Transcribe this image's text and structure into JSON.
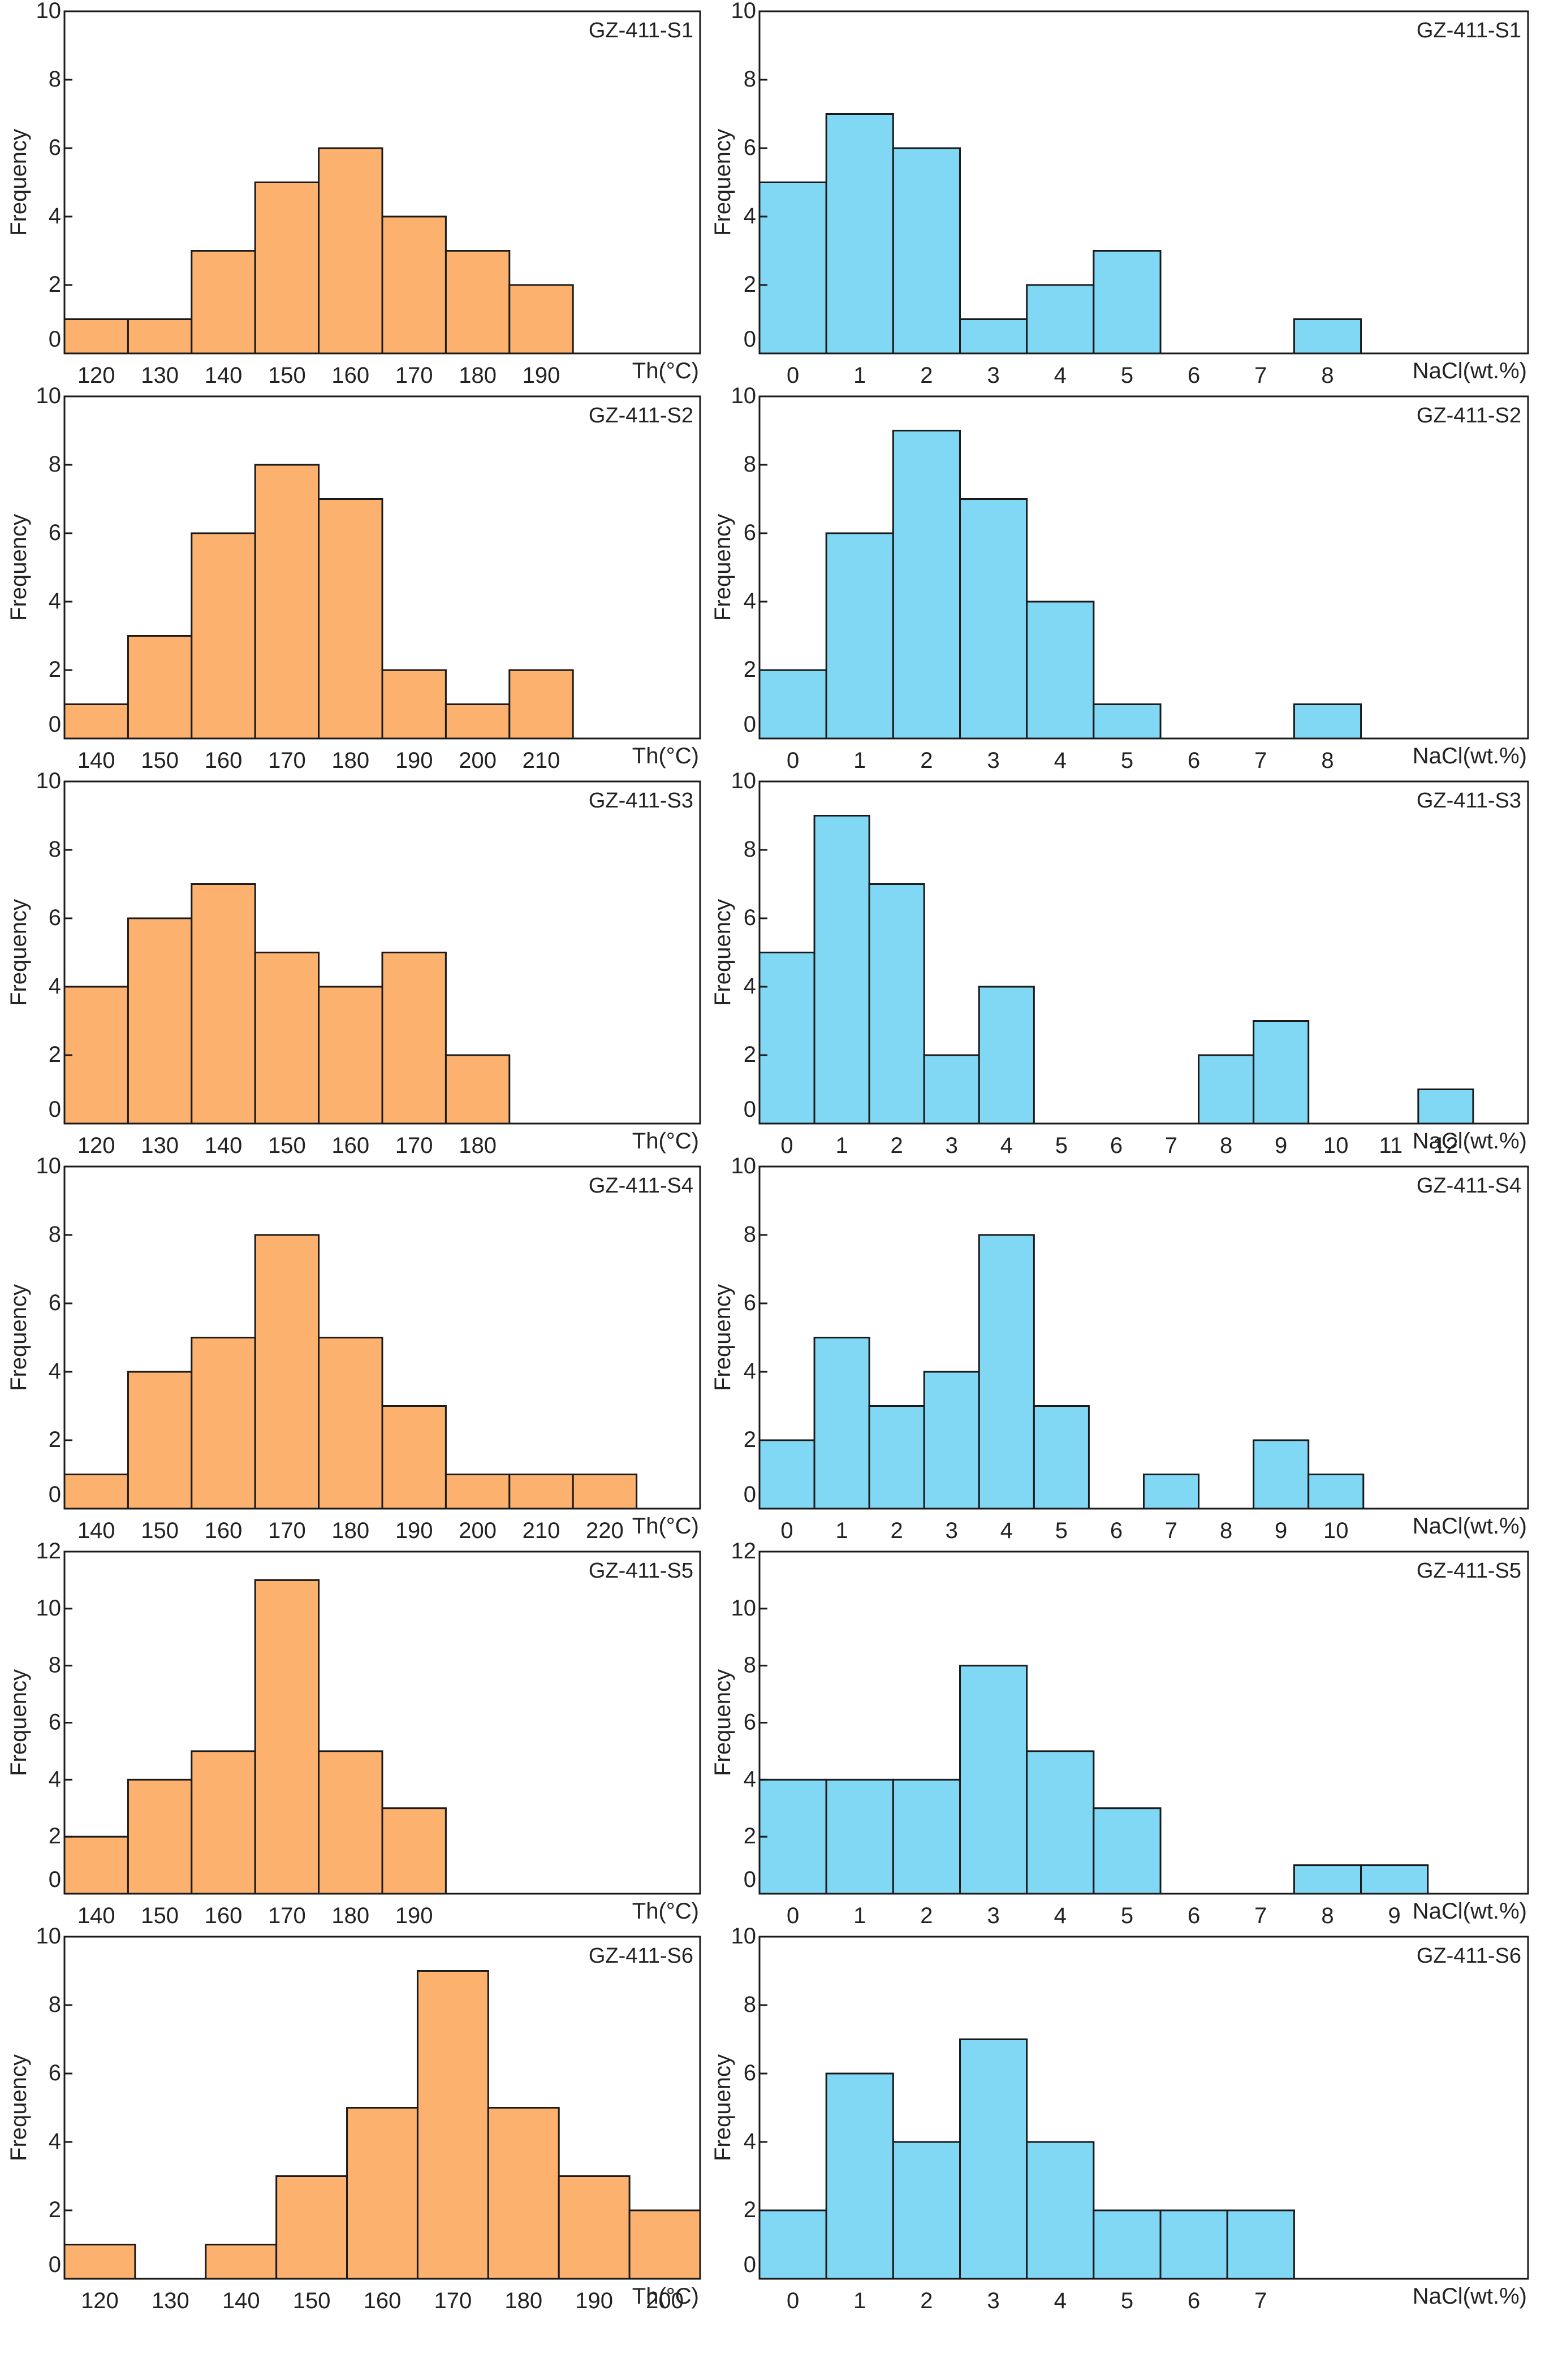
{
  "figure": {
    "colors": {
      "th": "#FDB16F",
      "nacl": "#80D8F5",
      "stroke": "#1a1a1a",
      "text": "#222222"
    },
    "ylabel": "Frequency"
  },
  "chart_data": [
    {
      "type": "bar",
      "sample": "GZ-411-S1",
      "title": "GZ-411-S1",
      "variable": "Th",
      "xlabel": "Th(°C)",
      "ylabel": "Frequency",
      "ylim": [
        0,
        10
      ],
      "yticks": [
        0,
        2,
        4,
        6,
        8,
        10
      ],
      "xlim": [
        115,
        215
      ],
      "xticks": [
        120,
        130,
        140,
        150,
        160,
        170,
        180,
        190
      ],
      "bin_width": 10,
      "bin_centers": [
        120,
        130,
        140,
        150,
        160,
        170,
        180,
        190
      ],
      "values": [
        1,
        1,
        3,
        5,
        6,
        4,
        3,
        2
      ]
    },
    {
      "type": "bar",
      "sample": "GZ-411-S1",
      "title": "GZ-411-S1",
      "variable": "NaCl",
      "xlabel": "NaCl(wt.%)",
      "ylabel": "Frequency",
      "ylim": [
        0,
        10
      ],
      "yticks": [
        0,
        2,
        4,
        6,
        8,
        10
      ],
      "xlim": [
        -0.5,
        11
      ],
      "xticks": [
        0,
        1,
        2,
        3,
        4,
        5,
        6,
        7,
        8
      ],
      "bin_width": 1,
      "bin_centers": [
        0,
        1,
        2,
        3,
        4,
        5,
        6,
        7,
        8
      ],
      "values": [
        5,
        7,
        6,
        1,
        2,
        3,
        0,
        0,
        1
      ]
    },
    {
      "type": "bar",
      "sample": "GZ-411-S2",
      "title": "GZ-411-S2",
      "variable": "Th",
      "xlabel": "Th(°C)",
      "ylabel": "Frequency",
      "ylim": [
        0,
        10
      ],
      "yticks": [
        0,
        2,
        4,
        6,
        8,
        10
      ],
      "xlim": [
        135,
        235
      ],
      "xticks": [
        140,
        150,
        160,
        170,
        180,
        190,
        200,
        210
      ],
      "bin_width": 10,
      "bin_centers": [
        140,
        150,
        160,
        170,
        180,
        190,
        200,
        210
      ],
      "values": [
        1,
        3,
        6,
        8,
        7,
        2,
        1,
        2
      ]
    },
    {
      "type": "bar",
      "sample": "GZ-411-S2",
      "title": "GZ-411-S2",
      "variable": "NaCl",
      "xlabel": "NaCl(wt.%)",
      "ylabel": "Frequency",
      "ylim": [
        0,
        10
      ],
      "yticks": [
        0,
        2,
        4,
        6,
        8,
        10
      ],
      "xlim": [
        -0.5,
        11
      ],
      "xticks": [
        0,
        1,
        2,
        3,
        4,
        5,
        6,
        7,
        8
      ],
      "bin_width": 1,
      "bin_centers": [
        0,
        1,
        2,
        3,
        4,
        5,
        6,
        7,
        8
      ],
      "values": [
        2,
        6,
        9,
        7,
        4,
        1,
        0,
        0,
        1
      ]
    },
    {
      "type": "bar",
      "sample": "GZ-411-S3",
      "title": "GZ-411-S3",
      "variable": "Th",
      "xlabel": "Th(°C)",
      "ylabel": "Frequency",
      "ylim": [
        0,
        10
      ],
      "yticks": [
        0,
        2,
        4,
        6,
        8,
        10
      ],
      "xlim": [
        115,
        215
      ],
      "xticks": [
        120,
        130,
        140,
        150,
        160,
        170,
        180
      ],
      "bin_width": 10,
      "bin_centers": [
        120,
        130,
        140,
        150,
        160,
        170,
        180
      ],
      "values": [
        4,
        6,
        7,
        5,
        4,
        5,
        2
      ]
    },
    {
      "type": "bar",
      "sample": "GZ-411-S3",
      "title": "GZ-411-S3",
      "variable": "NaCl",
      "xlabel": "NaCl(wt.%)",
      "ylabel": "Frequency",
      "ylim": [
        0,
        10
      ],
      "yticks": [
        0,
        2,
        4,
        6,
        8,
        10
      ],
      "xlim": [
        -0.5,
        13.5
      ],
      "xticks": [
        0,
        1,
        2,
        3,
        4,
        5,
        6,
        7,
        8,
        9,
        10,
        11,
        12
      ],
      "bin_width": 1,
      "bin_centers": [
        0,
        1,
        2,
        3,
        4,
        5,
        6,
        7,
        8,
        9,
        10,
        11,
        12
      ],
      "values": [
        5,
        9,
        7,
        2,
        4,
        0,
        0,
        0,
        2,
        3,
        0,
        0,
        1
      ]
    },
    {
      "type": "bar",
      "sample": "GZ-411-S4",
      "title": "GZ-411-S4",
      "variable": "Th",
      "xlabel": "Th(°C)",
      "ylabel": "Frequency",
      "ylim": [
        0,
        10
      ],
      "yticks": [
        0,
        2,
        4,
        6,
        8,
        10
      ],
      "xlim": [
        135,
        235
      ],
      "xticks": [
        140,
        150,
        160,
        170,
        180,
        190,
        200,
        210,
        220
      ],
      "bin_width": 10,
      "bin_centers": [
        140,
        150,
        160,
        170,
        180,
        190,
        200,
        210,
        220
      ],
      "values": [
        1,
        4,
        5,
        8,
        5,
        3,
        1,
        1,
        1
      ]
    },
    {
      "type": "bar",
      "sample": "GZ-411-S4",
      "title": "GZ-411-S4",
      "variable": "NaCl",
      "xlabel": "NaCl(wt.%)",
      "ylabel": "Frequency",
      "ylim": [
        0,
        10
      ],
      "yticks": [
        0,
        2,
        4,
        6,
        8,
        10
      ],
      "xlim": [
        -0.5,
        13.5
      ],
      "xticks": [
        0,
        1,
        2,
        3,
        4,
        5,
        6,
        7,
        8,
        9,
        10
      ],
      "bin_width": 1,
      "bin_centers": [
        0,
        1,
        2,
        3,
        4,
        5,
        6,
        7,
        8,
        9,
        10
      ],
      "values": [
        2,
        5,
        3,
        4,
        8,
        3,
        0,
        1,
        0,
        2,
        1
      ]
    },
    {
      "type": "bar",
      "sample": "GZ-411-S5",
      "title": "GZ-411-S5",
      "variable": "Th",
      "xlabel": "Th(°C)",
      "ylabel": "Frequency",
      "ylim": [
        0,
        12
      ],
      "yticks": [
        0,
        2,
        4,
        6,
        8,
        10,
        12
      ],
      "xlim": [
        135,
        235
      ],
      "xticks": [
        140,
        150,
        160,
        170,
        180,
        190
      ],
      "bin_width": 10,
      "bin_centers": [
        140,
        150,
        160,
        170,
        180,
        190
      ],
      "values": [
        2,
        4,
        5,
        11,
        5,
        3
      ]
    },
    {
      "type": "bar",
      "sample": "GZ-411-S5",
      "title": "GZ-411-S5",
      "variable": "NaCl",
      "xlabel": "NaCl(wt.%)",
      "ylabel": "Frequency",
      "ylim": [
        0,
        12
      ],
      "yticks": [
        0,
        2,
        4,
        6,
        8,
        10,
        12
      ],
      "xlim": [
        -0.5,
        11
      ],
      "xticks": [
        0,
        1,
        2,
        3,
        4,
        5,
        6,
        7,
        8,
        9
      ],
      "bin_width": 1,
      "bin_centers": [
        0,
        1,
        2,
        3,
        4,
        5,
        6,
        7,
        8,
        9
      ],
      "values": [
        4,
        4,
        4,
        8,
        5,
        3,
        0,
        0,
        1,
        1
      ]
    },
    {
      "type": "bar",
      "sample": "GZ-411-S6",
      "title": "GZ-411-S6",
      "variable": "Th",
      "xlabel": "Th(°C)",
      "ylabel": "Frequency",
      "ylim": [
        0,
        10
      ],
      "yticks": [
        0,
        2,
        4,
        6,
        8,
        10
      ],
      "xlim": [
        115,
        205
      ],
      "xticks": [
        120,
        130,
        140,
        150,
        160,
        170,
        180,
        190,
        200
      ],
      "bin_width": 10,
      "bin_centers": [
        120,
        130,
        140,
        150,
        160,
        170,
        180,
        190,
        200
      ],
      "values": [
        1,
        0,
        1,
        3,
        5,
        9,
        5,
        3,
        2
      ]
    },
    {
      "type": "bar",
      "sample": "GZ-411-S6",
      "title": "GZ-411-S6",
      "variable": "NaCl",
      "xlabel": "NaCl(wt.%)",
      "ylabel": "Frequency",
      "ylim": [
        0,
        10
      ],
      "yticks": [
        0,
        2,
        4,
        6,
        8,
        10
      ],
      "xlim": [
        -0.5,
        11
      ],
      "xticks": [
        0,
        1,
        2,
        3,
        4,
        5,
        6,
        7
      ],
      "bin_width": 1,
      "bin_centers": [
        0,
        1,
        2,
        3,
        4,
        5,
        6,
        7
      ],
      "values": [
        2,
        6,
        4,
        7,
        4,
        2,
        2,
        2
      ]
    }
  ]
}
